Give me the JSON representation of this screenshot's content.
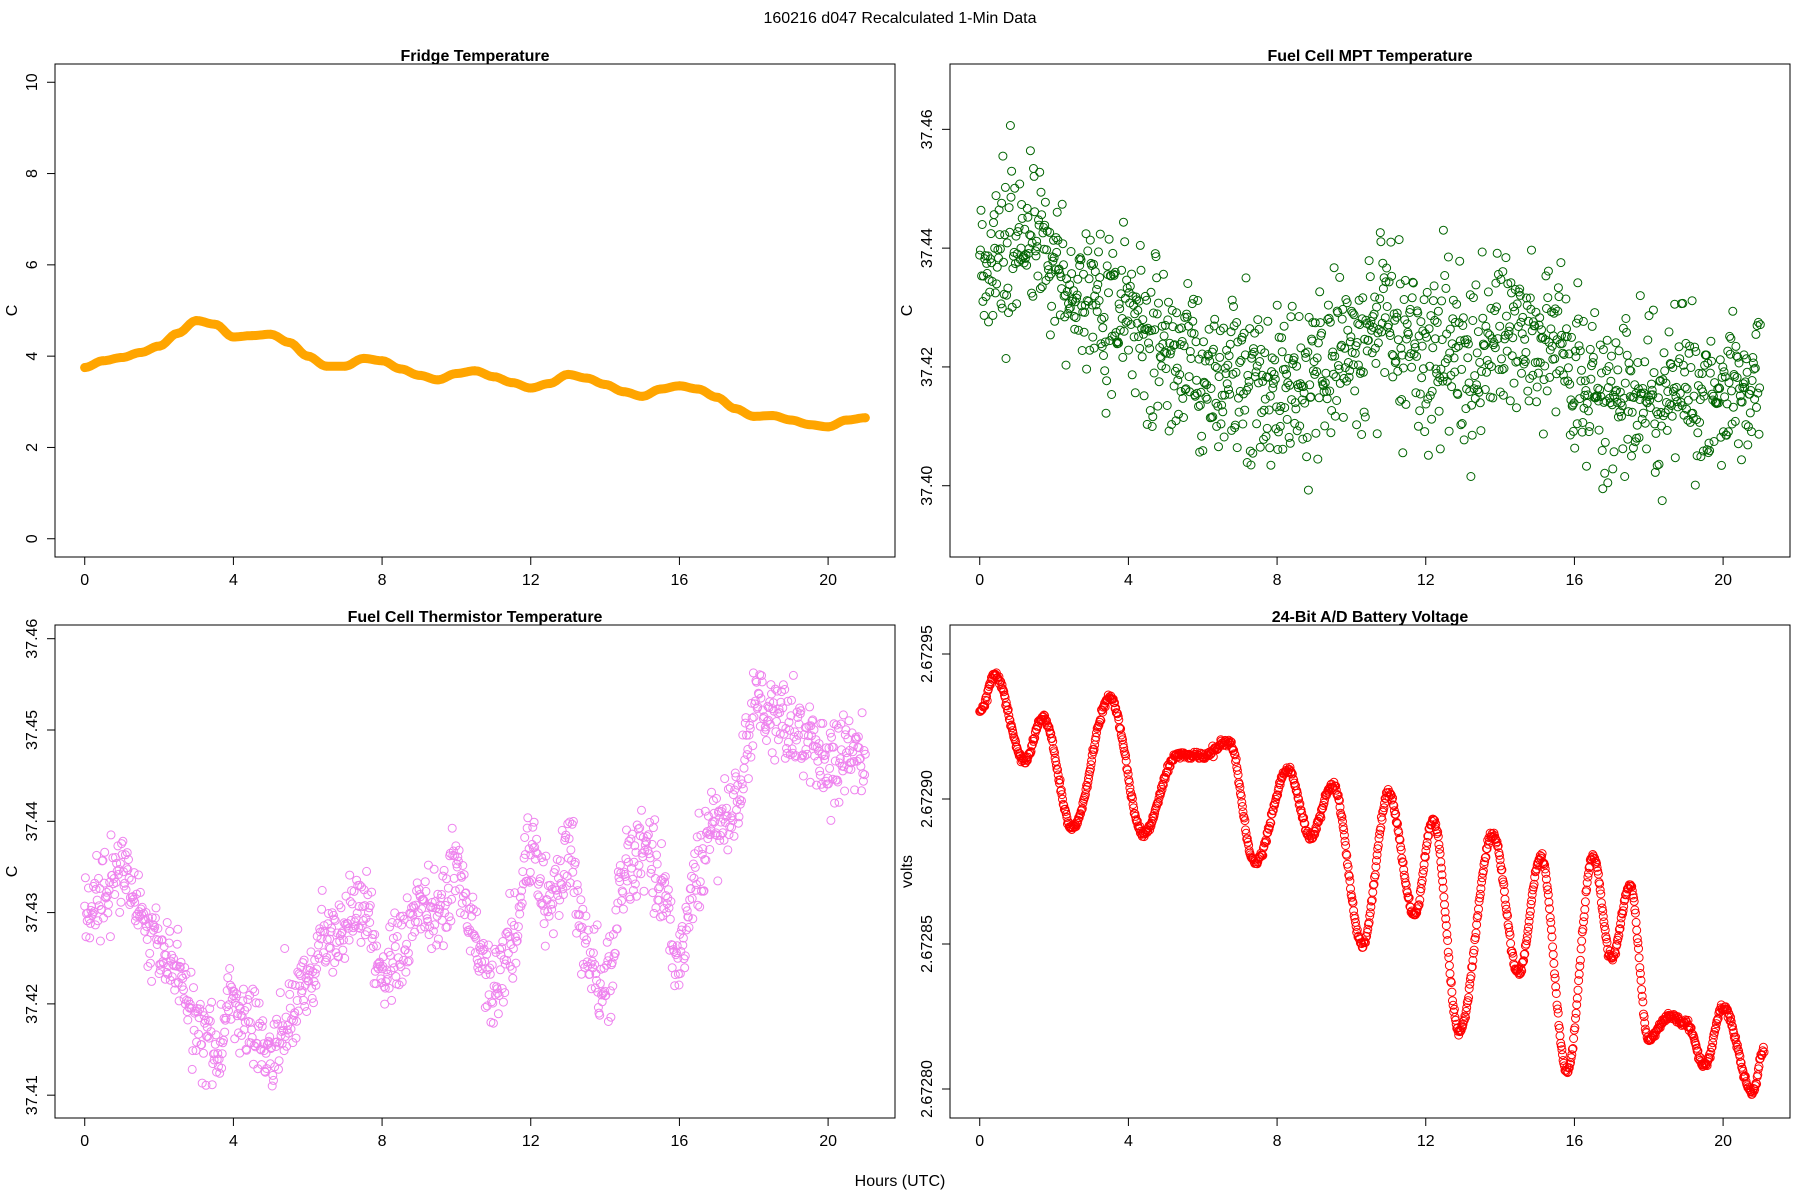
{
  "suptitle": "160216   d047   Recalculated 1-Min Data",
  "xlabel_common": "Hours (UTC)",
  "chart_data": [
    {
      "type": "line",
      "title": "Fridge Temperature",
      "ylabel": "C",
      "color": "#ffa500",
      "xlim": [
        -0.8,
        21.8
      ],
      "ylim": [
        -0.4,
        10.4
      ],
      "xticks": [
        0,
        4,
        8,
        12,
        16,
        20
      ],
      "xtick_labels": [
        "0",
        "4",
        "8",
        "12",
        "16",
        "20"
      ],
      "yticks": [
        0,
        2,
        4,
        6,
        8,
        10
      ],
      "ytick_labels": [
        "0",
        "2",
        "4",
        "6",
        "8",
        "10"
      ],
      "x": [
        0,
        0.5,
        1,
        1.5,
        2,
        2.5,
        3,
        3.5,
        4,
        4.5,
        5,
        5.5,
        6,
        6.5,
        7,
        7.5,
        8,
        8.5,
        9,
        9.5,
        10,
        10.5,
        11,
        11.5,
        12,
        12.5,
        13,
        13.5,
        14,
        14.5,
        15,
        15.5,
        16,
        16.5,
        17,
        17.5,
        18,
        18.5,
        19,
        19.5,
        20,
        20.5,
        21
      ],
      "y": [
        3.75,
        3.9,
        3.97,
        4.08,
        4.22,
        4.5,
        4.78,
        4.7,
        4.42,
        4.45,
        4.48,
        4.3,
        4.0,
        3.78,
        3.78,
        3.95,
        3.9,
        3.72,
        3.58,
        3.48,
        3.62,
        3.68,
        3.55,
        3.42,
        3.3,
        3.4,
        3.6,
        3.52,
        3.38,
        3.22,
        3.12,
        3.28,
        3.35,
        3.28,
        3.1,
        2.85,
        2.68,
        2.7,
        2.6,
        2.5,
        2.45,
        2.6,
        2.65
      ]
    },
    {
      "type": "scatter",
      "title": "Fuel Cell MPT Temperature",
      "ylabel": "C",
      "color": "#006400",
      "xlim": [
        -0.8,
        21.8
      ],
      "ylim": [
        37.388,
        37.471
      ],
      "xticks": [
        0,
        4,
        8,
        12,
        16,
        20
      ],
      "xtick_labels": [
        "0",
        "4",
        "8",
        "12",
        "16",
        "20"
      ],
      "yticks": [
        37.4,
        37.42,
        37.44,
        37.46
      ],
      "ytick_labels": [
        "37.40",
        "37.42",
        "37.44",
        "37.46"
      ],
      "x": [
        0,
        0.5,
        1,
        1.5,
        2,
        2.5,
        3,
        3.5,
        4,
        4.5,
        5,
        5.5,
        6,
        6.5,
        7,
        7.5,
        8,
        8.5,
        9,
        9.5,
        10,
        10.5,
        11,
        11.5,
        12,
        12.5,
        13,
        13.5,
        14,
        14.5,
        15,
        15.5,
        16,
        16.5,
        17,
        17.5,
        18,
        18.5,
        19,
        19.5,
        20,
        20.5,
        21
      ],
      "y": [
        37.437,
        37.441,
        37.44,
        37.442,
        37.438,
        37.434,
        37.432,
        37.428,
        37.43,
        37.424,
        37.422,
        37.423,
        37.42,
        37.419,
        37.418,
        37.417,
        37.416,
        37.417,
        37.42,
        37.423,
        37.424,
        37.425,
        37.426,
        37.424,
        37.422,
        37.423,
        37.42,
        37.421,
        37.425,
        37.423,
        37.422,
        37.424,
        37.418,
        37.416,
        37.415,
        37.417,
        37.414,
        37.414,
        37.415,
        37.416,
        37.416,
        37.414,
        37.418
      ],
      "spread": 0.012
    },
    {
      "type": "scatter",
      "title": "Fuel Cell Thermistor Temperature",
      "ylabel": "C",
      "color": "#ee82ee",
      "xlim": [
        -0.8,
        21.8
      ],
      "ylim": [
        37.4075,
        37.4615
      ],
      "xticks": [
        0,
        4,
        8,
        12,
        16,
        20
      ],
      "xtick_labels": [
        "0",
        "4",
        "8",
        "12",
        "16",
        "20"
      ],
      "yticks": [
        37.41,
        37.42,
        37.43,
        37.44,
        37.45,
        37.46
      ],
      "ytick_labels": [
        "37.41",
        "37.42",
        "37.43",
        "37.44",
        "37.45",
        "37.46"
      ],
      "x": [
        0,
        0.5,
        1,
        1.5,
        2,
        2.5,
        3,
        3.5,
        4,
        4.5,
        5,
        5.5,
        6,
        6.5,
        7,
        7.5,
        8,
        8.5,
        9,
        9.5,
        10,
        10.5,
        11,
        11.5,
        12,
        12.5,
        13,
        13.5,
        14,
        14.5,
        15,
        15.5,
        16,
        16.5,
        17,
        17.5,
        18,
        18.5,
        19,
        19.5,
        20,
        20.5,
        21
      ],
      "y": [
        37.43,
        37.431,
        37.435,
        37.43,
        37.426,
        37.424,
        37.417,
        37.415,
        37.42,
        37.417,
        37.414,
        37.418,
        37.423,
        37.426,
        37.429,
        37.431,
        37.423,
        37.426,
        37.432,
        37.43,
        37.435,
        37.428,
        37.421,
        37.427,
        37.437,
        37.431,
        37.436,
        37.426,
        37.421,
        37.434,
        37.437,
        37.433,
        37.425,
        37.435,
        37.44,
        37.441,
        37.452,
        37.452,
        37.45,
        37.449,
        37.446,
        37.448,
        37.447
      ],
      "spread": 0.004
    },
    {
      "type": "scatter",
      "title": "24-Bit A/D Battery Voltage",
      "ylabel": "volts",
      "color": "#ff0000",
      "xlim": [
        -0.8,
        21.8
      ],
      "ylim": [
        2.67279,
        2.67296
      ],
      "xticks": [
        0,
        4,
        8,
        12,
        16,
        20
      ],
      "xtick_labels": [
        "0",
        "4",
        "8",
        "12",
        "16",
        "20"
      ],
      "yticks": [
        2.6728,
        2.67285,
        2.6729,
        2.67295
      ],
      "ytick_labels": [
        "2.67280",
        "2.67285",
        "2.67290",
        "2.67295"
      ],
      "x": [
        0,
        0.4,
        1.2,
        1.7,
        2.5,
        3.5,
        4.4,
        5.3,
        6,
        6.7,
        7.4,
        8.3,
        8.9,
        9.5,
        10.3,
        11,
        11.7,
        12.2,
        12.9,
        13.8,
        14.5,
        15.1,
        15.8,
        16.5,
        17,
        17.5,
        18,
        18.5,
        19,
        19.5,
        20,
        20.8,
        21.1
      ],
      "y": [
        2.67293,
        2.672943,
        2.672913,
        2.672928,
        2.67289,
        2.672935,
        2.672888,
        2.672915,
        2.672915,
        2.67292,
        2.672878,
        2.67291,
        2.672887,
        2.672905,
        2.67285,
        2.672902,
        2.67286,
        2.672893,
        2.67282,
        2.672888,
        2.67284,
        2.67288,
        2.672806,
        2.67288,
        2.672845,
        2.67287,
        2.672817,
        2.672825,
        2.672823,
        2.672808,
        2.672828,
        2.672799,
        2.672814
      ]
    }
  ]
}
